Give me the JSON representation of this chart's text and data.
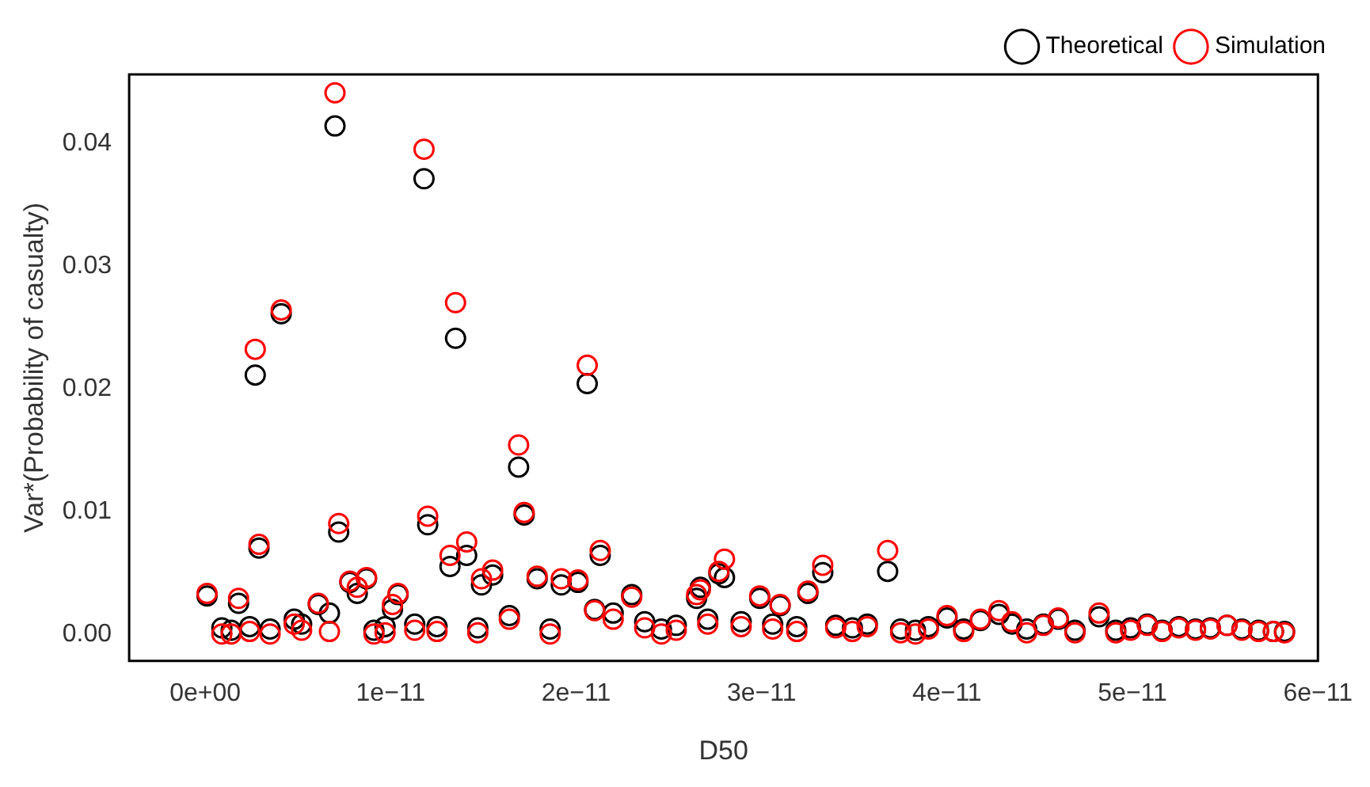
{
  "chart_data": {
    "type": "scatter",
    "xlabel": "D50",
    "ylabel": "Var*(Probability of casualty)",
    "x": [
      1e-13,
      9e-13,
      1.4e-12,
      1.8e-12,
      2.4e-12,
      2.7e-12,
      2.9e-12,
      3.5e-12,
      4.1e-12,
      4.8e-12,
      5.2e-12,
      6.1e-12,
      6.7e-12,
      7e-12,
      7.2e-12,
      7.8e-12,
      8.2e-12,
      8.7e-12,
      9.1e-12,
      9.7e-12,
      1.01e-11,
      1.04e-11,
      1.13e-11,
      1.18e-11,
      1.2e-11,
      1.25e-11,
      1.32e-11,
      1.35e-11,
      1.41e-11,
      1.47e-11,
      1.49e-11,
      1.55e-11,
      1.64e-11,
      1.69e-11,
      1.72e-11,
      1.79e-11,
      1.86e-11,
      1.92e-11,
      2.01e-11,
      2.06e-11,
      2.1e-11,
      2.13e-11,
      2.2e-11,
      2.3e-11,
      2.37e-11,
      2.46e-11,
      2.54e-11,
      2.65e-11,
      2.67e-11,
      2.71e-11,
      2.77e-11,
      2.8e-11,
      2.89e-11,
      2.99e-11,
      3.06e-11,
      3.1e-11,
      3.19e-11,
      3.25e-11,
      3.33e-11,
      3.4e-11,
      3.49e-11,
      3.57e-11,
      3.68e-11,
      3.75e-11,
      3.83e-11,
      3.9e-11,
      4e-11,
      4.09e-11,
      4.18e-11,
      4.28e-11,
      4.35e-11,
      4.43e-11,
      4.52e-11,
      4.6e-11,
      4.69e-11,
      4.82e-11,
      4.91e-11,
      4.99e-11,
      5.08e-11,
      5.16e-11,
      5.25e-11,
      5.34e-11,
      5.42e-11,
      5.51e-11,
      5.59e-11,
      5.68e-11,
      5.76e-11,
      5.82e-11
    ],
    "series": [
      {
        "name": "Theoretical",
        "color": "#000000",
        "values": [
          0.0031,
          0.0005,
          0.0003,
          0.0025,
          0.0006,
          0.0211,
          0.007,
          0.0004,
          0.0261,
          0.0012,
          0.0008,
          0.0024,
          0.0017,
          0.0414,
          0.0083,
          0.0042,
          0.0033,
          0.0045,
          0.0003,
          0.0006,
          0.002,
          0.0032,
          0.0008,
          0.0371,
          0.0089,
          0.0006,
          0.0055,
          0.0241,
          0.0064,
          0.0005,
          0.004,
          0.0048,
          0.0015,
          0.0136,
          0.0097,
          0.0045,
          0.0004,
          0.004,
          0.0042,
          0.0204,
          0.002,
          0.0064,
          0.0017,
          0.0032,
          0.001,
          0.0004,
          0.0007,
          0.0029,
          0.0038,
          0.0012,
          0.0049,
          0.0046,
          0.001,
          0.0029,
          0.0008,
          0.0023,
          0.0006,
          0.0033,
          0.005,
          0.0007,
          0.0005,
          0.0008,
          0.0051,
          0.0004,
          0.0003,
          0.0006,
          0.0013,
          0.0004,
          0.0011,
          0.0016,
          0.0008,
          0.0004,
          0.0008,
          0.0012,
          0.0003,
          0.0014,
          0.0003,
          0.0005,
          0.0008,
          0.0003,
          0.0006,
          0.0004,
          0.0005,
          0.0007,
          0.0004,
          0.0003,
          0.0002,
          0.0002
        ]
      },
      {
        "name": "Simulation",
        "color": "#ff0000",
        "values": [
          0.0033,
          0.0,
          0.0,
          0.0029,
          0.0002,
          0.0232,
          0.0073,
          0.0,
          0.0264,
          0.0008,
          0.0003,
          0.0025,
          0.0002,
          0.0441,
          0.009,
          0.0043,
          0.0038,
          0.0046,
          0.0,
          0.0001,
          0.0024,
          0.0033,
          0.0003,
          0.0395,
          0.0096,
          0.0002,
          0.0064,
          0.027,
          0.0075,
          0.0001,
          0.0045,
          0.0052,
          0.0012,
          0.0154,
          0.0099,
          0.0047,
          0.0,
          0.0045,
          0.0044,
          0.0219,
          0.0019,
          0.0068,
          0.0012,
          0.003,
          0.0005,
          0.0,
          0.0003,
          0.0032,
          0.0036,
          0.0008,
          0.0051,
          0.0061,
          0.0006,
          0.0031,
          0.0004,
          0.0024,
          0.0002,
          0.0035,
          0.0056,
          0.0005,
          0.0002,
          0.0006,
          0.0068,
          0.0001,
          0.0,
          0.0004,
          0.0015,
          0.0002,
          0.0012,
          0.0019,
          0.001,
          0.0001,
          0.0007,
          0.0013,
          0.0001,
          0.0017,
          0.0001,
          0.0003,
          0.0007,
          0.0002,
          0.0005,
          0.0003,
          0.0004,
          0.0007,
          0.0003,
          0.0002,
          0.0002,
          0.0001
        ]
      }
    ],
    "xlim": [
      -4.1e-12,
      6e-11
    ],
    "xticks": [
      {
        "value": 0,
        "label": "0e+00"
      },
      {
        "value": 1e-11,
        "label": "1e−11"
      },
      {
        "value": 2e-11,
        "label": "2e−11"
      },
      {
        "value": 3e-11,
        "label": "3e−11"
      },
      {
        "value": 4e-11,
        "label": "4e−11"
      },
      {
        "value": 5e-11,
        "label": "5e−11"
      },
      {
        "value": 6e-11,
        "label": "6e−11"
      }
    ],
    "ylim": [
      -0.0022,
      0.0456
    ],
    "yticks": [
      {
        "value": 0,
        "label": "0.00"
      },
      {
        "value": 0.01,
        "label": "0.01"
      },
      {
        "value": 0.02,
        "label": "0.02"
      },
      {
        "value": 0.03,
        "label": "0.03"
      },
      {
        "value": 0.04,
        "label": "0.04"
      }
    ],
    "marker": "circle",
    "legend": "top right",
    "grid": false
  }
}
